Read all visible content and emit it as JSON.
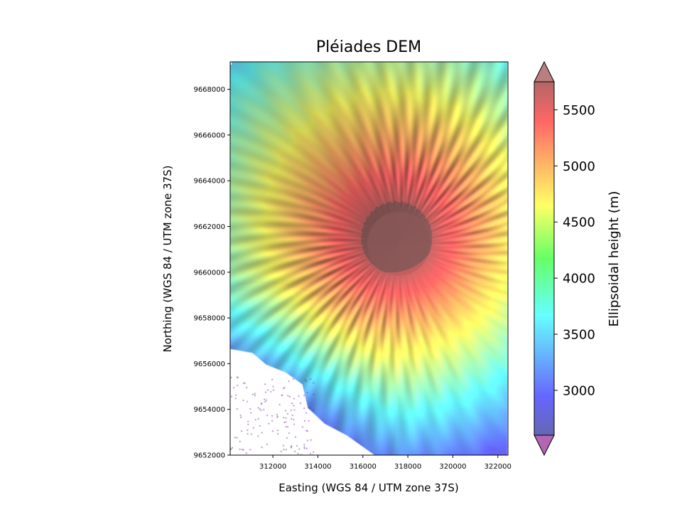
{
  "chart_data": {
    "type": "heatmap",
    "title": "Pléiades DEM",
    "xlabel": "Easting (WGS 84 / UTM zone 37S)",
    "ylabel": "Northing (WGS 84 / UTM zone 37S)",
    "xlim": [
      310100,
      322450
    ],
    "ylim": [
      9652000,
      9669200
    ],
    "x_ticks": [
      312000,
      314000,
      316000,
      318000,
      320000,
      322000
    ],
    "x_tick_labels": [
      "312000",
      "314000",
      "316000",
      "318000",
      "320000",
      "322000"
    ],
    "y_ticks": [
      9652000,
      9654000,
      9656000,
      9658000,
      9660000,
      9662000,
      9664000,
      9666000,
      9668000
    ],
    "y_tick_labels": [
      "9652000",
      "9654000",
      "9656000",
      "9658000",
      "9660000",
      "9662000",
      "9664000",
      "9666000",
      "9668000"
    ],
    "colormap": "jet",
    "alpha": 0.6,
    "colorbar": {
      "label": "Ellipsoidal height (m)",
      "range": [
        2600,
        5750
      ],
      "extend": "both",
      "ticks": [
        3000,
        3500,
        4000,
        4500,
        5000,
        5500
      ],
      "tick_labels": [
        "3000",
        "3500",
        "4000",
        "4500",
        "5000",
        "5500"
      ]
    },
    "summit": {
      "x": 317600,
      "y": 9661250,
      "height_m": 5800
    },
    "summit_plateau_m": 5650
  }
}
